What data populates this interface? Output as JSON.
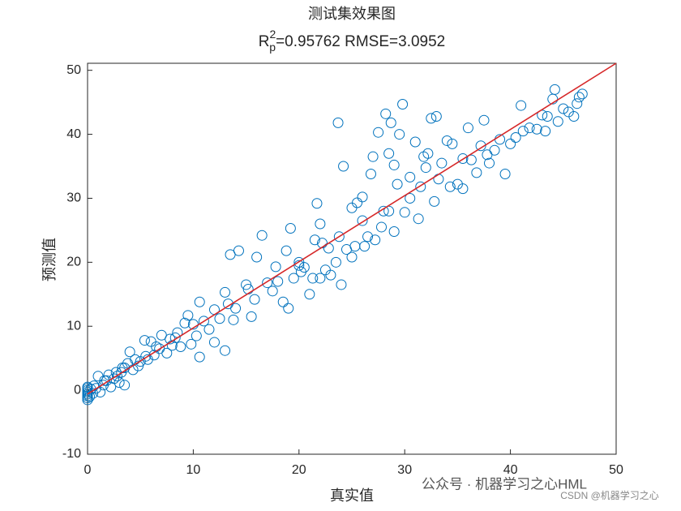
{
  "chart_data": {
    "type": "scatter",
    "title": "测试集效果图",
    "subtitle": [
      "R",
      "2",
      "p",
      "=0.95762  RMSE=3.0952"
    ],
    "xlabel": "真实值",
    "ylabel": "预测值",
    "xlim": [
      0,
      50
    ],
    "ylim": [
      -10,
      51.1
    ],
    "xticks": [
      0,
      10,
      20,
      30,
      40,
      50
    ],
    "yticks": [
      -10,
      0,
      10,
      20,
      30,
      40,
      50
    ],
    "series": [
      {
        "color": "#0072bd",
        "x": [
          0,
          0,
          0,
          0,
          0,
          0,
          0,
          0,
          0.2,
          0.3,
          0.5,
          0.8,
          1,
          1.2,
          1.5,
          1.8,
          2,
          2.2,
          2.5,
          2.8,
          3,
          3.2,
          3.5,
          3.8,
          3.5,
          4,
          4.3,
          4.8,
          5,
          5.4,
          5.7,
          6,
          6.3,
          6.8,
          7,
          7.5,
          8,
          8.3,
          8.8,
          9.2,
          9.5,
          9.8,
          10.3,
          10.6,
          10.6,
          11,
          11.5,
          12,
          12.5,
          13,
          13,
          13.3,
          13.5,
          13.8,
          14,
          14.3,
          15,
          15.5,
          15.8,
          16,
          16.5,
          17,
          17.5,
          18,
          18.5,
          18.8,
          19,
          19.2,
          19.5,
          20,
          20.2,
          20.5,
          21,
          21.3,
          21.5,
          21.7,
          22,
          22,
          22.2,
          22.5,
          23,
          23.5,
          23.7,
          23.8,
          24,
          24.2,
          24.5,
          25,
          25,
          25.3,
          25.5,
          26,
          26.2,
          26.5,
          26.8,
          27,
          27.2,
          27.5,
          27.8,
          28,
          28.2,
          28.5,
          28.7,
          29,
          29,
          29.3,
          29.5,
          29.8,
          30,
          30.5,
          31,
          31.3,
          31.5,
          32,
          32.2,
          32.5,
          32.8,
          33,
          33.2,
          33.5,
          34,
          34.3,
          34.5,
          35,
          35.5,
          36,
          36.3,
          36.8,
          37.2,
          37.5,
          38,
          38.5,
          39,
          39.5,
          40,
          40.5,
          41,
          41.2,
          41.8,
          42.5,
          43,
          43.3,
          43.5,
          44,
          44.2,
          44.5,
          45,
          45.5,
          46,
          46.3,
          46.5,
          46.8,
          35.5,
          37.8,
          28.5,
          30.5,
          31.8,
          22.8,
          26,
          20,
          17.8,
          15.2,
          12,
          10,
          8.5,
          7.8,
          6.5,
          5.5,
          4.5,
          3.3,
          2.7,
          1.6,
          0.6
        ],
        "values": [
          -1.5,
          -1.2,
          -0.9,
          -0.6,
          -0.3,
          0,
          0.3,
          0.5,
          -1,
          0.2,
          -0.5,
          0.3,
          2.2,
          -0.3,
          0.8,
          1.5,
          2.4,
          0.5,
          1.8,
          2.2,
          1.2,
          2.8,
          3.5,
          4.2,
          0.8,
          6,
          3.2,
          3.8,
          4.5,
          7.8,
          4.8,
          7.6,
          5.5,
          6.5,
          8.6,
          5.8,
          7,
          8.2,
          6.8,
          10.5,
          11.7,
          7.2,
          8.5,
          13.8,
          5.2,
          10.8,
          9.5,
          7.5,
          11.2,
          15.3,
          6.2,
          13.5,
          21.2,
          11,
          12.8,
          21.8,
          16.5,
          11.5,
          14.2,
          20.8,
          24.2,
          16.8,
          15.5,
          17,
          13.8,
          21.8,
          12.8,
          25.3,
          17.5,
          20,
          18.5,
          19.2,
          15,
          17.5,
          23.5,
          29.2,
          17.5,
          26,
          23,
          18.8,
          18,
          20,
          41.8,
          24,
          16.5,
          35,
          22,
          20.8,
          28.5,
          22.5,
          29.3,
          30.2,
          22.5,
          24,
          33.8,
          36.5,
          23.5,
          40.3,
          25.5,
          28,
          43.2,
          37,
          41.8,
          35.2,
          24.8,
          32.2,
          40,
          44.7,
          27.8,
          30,
          38.8,
          26.8,
          31.8,
          34.8,
          37,
          42.5,
          29.5,
          42.8,
          33,
          35.5,
          39,
          31.8,
          38.5,
          32.2,
          36.2,
          41,
          36,
          34,
          38.2,
          42.2,
          35.5,
          37.5,
          39.2,
          33.8,
          38.5,
          39.5,
          44.5,
          40.5,
          41,
          40.8,
          43,
          40.5,
          42.8,
          45.5,
          47,
          42,
          44,
          43.5,
          42.8,
          44.8,
          45.8,
          46.3,
          31.5,
          36.8,
          28,
          33.3,
          36.5,
          22.2,
          26.5,
          19.5,
          19.3,
          15.8,
          12.6,
          10.3,
          9,
          8,
          6.8,
          5.3,
          4.8,
          3.5,
          2.8,
          1.5,
          0.7
        ]
      }
    ],
    "fit_line": {
      "color": "#d62728",
      "x": [
        0,
        50
      ],
      "y": [
        -0.6,
        51.1
      ]
    },
    "annotations": [
      "公众号 · 机器学习之心HML",
      "CSDN @机器学习之心"
    ]
  }
}
